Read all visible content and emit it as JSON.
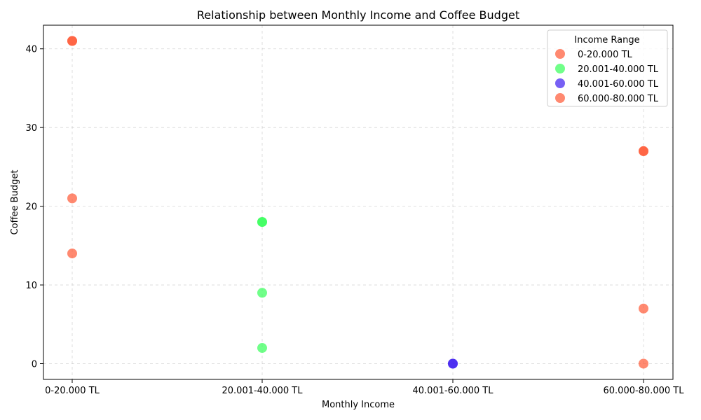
{
  "chart_data": {
    "type": "scatter",
    "title": "Relationship between Monthly Income and Coffee Budget",
    "xlabel": "Monthly Income",
    "ylabel": "Coffee Budget",
    "categories": [
      "0-20.000 TL",
      "20.001-40.000 TL",
      "40.001-60.000 TL",
      "60.000-80.000 TL"
    ],
    "ylim": [
      -2,
      43
    ],
    "yticks": [
      0,
      10,
      20,
      30,
      40
    ],
    "grid": true,
    "legend": {
      "title": "Income Range",
      "placement": "top-right"
    },
    "series": [
      {
        "name": "0-20.000 TL",
        "color": "#ff5733",
        "points": [
          {
            "x": "0-20.000 TL",
            "y": 41
          },
          {
            "x": "0-20.000 TL",
            "y": 41
          },
          {
            "x": "0-20.000 TL",
            "y": 21
          },
          {
            "x": "0-20.000 TL",
            "y": 14
          }
        ]
      },
      {
        "name": "20.001-40.000 TL",
        "color": "#33ff57",
        "points": [
          {
            "x": "20.001-40.000 TL",
            "y": 18
          },
          {
            "x": "20.001-40.000 TL",
            "y": 18
          },
          {
            "x": "20.001-40.000 TL",
            "y": 9
          },
          {
            "x": "20.001-40.000 TL",
            "y": 2
          }
        ]
      },
      {
        "name": "40.001-60.000 TL",
        "color": "#3d1cf0",
        "points": [
          {
            "x": "40.001-60.000 TL",
            "y": 0
          },
          {
            "x": "40.001-60.000 TL",
            "y": 0
          }
        ]
      },
      {
        "name": "60.000-80.000 TL",
        "color": "#ff5733",
        "points": [
          {
            "x": "60.000-80.000 TL",
            "y": 27
          },
          {
            "x": "60.000-80.000 TL",
            "y": 27
          },
          {
            "x": "60.000-80.000 TL",
            "y": 7
          },
          {
            "x": "60.000-80.000 TL",
            "y": 0
          }
        ]
      }
    ]
  }
}
